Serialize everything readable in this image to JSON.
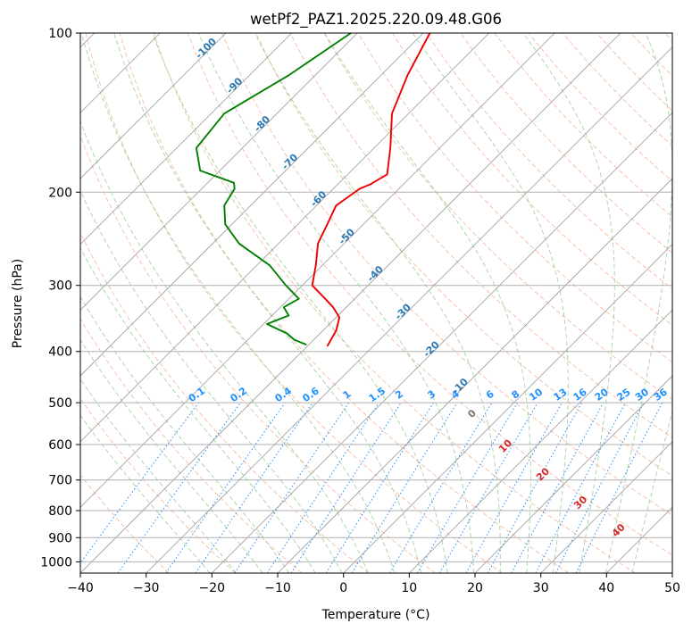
{
  "chart_data": {
    "type": "line",
    "title": "wetPf2_PAZ1.2025.220.09.48.G06",
    "xlabel": "Temperature (°C)",
    "ylabel": "Pressure (hPa)",
    "xlim": [
      -40,
      50
    ],
    "ylim": [
      1050,
      100
    ],
    "yscale": "log",
    "x_ticks": [
      "−40",
      "−30",
      "−20",
      "−10",
      "0",
      "10",
      "20",
      "30",
      "40",
      "50"
    ],
    "x_tick_values": [
      -40,
      -30,
      -20,
      -10,
      0,
      10,
      20,
      30,
      40,
      50
    ],
    "y_ticks": [
      "100",
      "200",
      "300",
      "400",
      "500",
      "600",
      "700",
      "800",
      "900",
      "1000"
    ],
    "y_tick_values": [
      100,
      200,
      300,
      400,
      500,
      600,
      700,
      800,
      900,
      1000
    ],
    "grid": true,
    "skew": true,
    "series": [
      {
        "color": "#ee0000",
        "points": [
          [
            -69.0,
            100
          ],
          [
            -66.0,
            120
          ],
          [
            -62.5,
            142
          ],
          [
            -57.5,
            165
          ],
          [
            -54.0,
            185
          ],
          [
            -55.0,
            193
          ],
          [
            -56.0,
            197
          ],
          [
            -57.0,
            212
          ],
          [
            -55.5,
            230
          ],
          [
            -54.0,
            250
          ],
          [
            -51.0,
            275
          ],
          [
            -48.5,
            300
          ],
          [
            -44.5,
            318
          ],
          [
            -42.0,
            330
          ],
          [
            -39.5,
            345
          ],
          [
            -38.0,
            365
          ],
          [
            -37.0,
            390
          ]
        ]
      },
      {
        "color": "#008000",
        "points": [
          [
            -81.0,
            100
          ],
          [
            -84.0,
            120
          ],
          [
            -88.0,
            142
          ],
          [
            -87.0,
            165
          ],
          [
            -83.0,
            182
          ],
          [
            -76.0,
            192
          ],
          [
            -75.0,
            197
          ],
          [
            -74.0,
            212
          ],
          [
            -71.0,
            230
          ],
          [
            -66.0,
            250
          ],
          [
            -58.0,
            275
          ],
          [
            -52.5,
            300
          ],
          [
            -48.5,
            318
          ],
          [
            -49.5,
            330
          ],
          [
            -47.5,
            342
          ],
          [
            -49.5,
            355
          ],
          [
            -45.0,
            370
          ],
          [
            -43.0,
            380
          ],
          [
            -40.5,
            388
          ]
        ]
      }
    ],
    "reference_lines": {
      "isotherms": true,
      "dry_adiabats": true,
      "moist_adiabats": true,
      "mixing_ratio_lines": true
    },
    "annotations": {
      "mixing_ratio_labels": [
        "0.1",
        "0.2",
        "0.4",
        "0.6",
        "1",
        "1.5",
        "2",
        "3",
        "4",
        "6",
        "8",
        "10",
        "13",
        "16",
        "20",
        "25",
        "30",
        "36"
      ],
      "mixing_ratio_values": [
        0.1,
        0.2,
        0.4,
        0.6,
        1,
        1.5,
        2,
        3,
        4,
        6,
        8,
        10,
        13,
        16,
        20,
        25,
        30,
        36
      ],
      "dry_adiabat_labels": [
        "-100",
        "-90",
        "-80",
        "-70",
        "-60",
        "-50",
        "-40",
        "-30",
        "-20",
        "-10"
      ],
      "dry_adiabat_values": [
        -100,
        -90,
        -80,
        -70,
        -60,
        -50,
        -40,
        -30,
        -20,
        -10
      ],
      "moist_adiabat_labels": [
        "0",
        "10",
        "20",
        "30",
        "40"
      ],
      "moist_adiabat_values": [
        0,
        10,
        20,
        30,
        40
      ]
    }
  }
}
